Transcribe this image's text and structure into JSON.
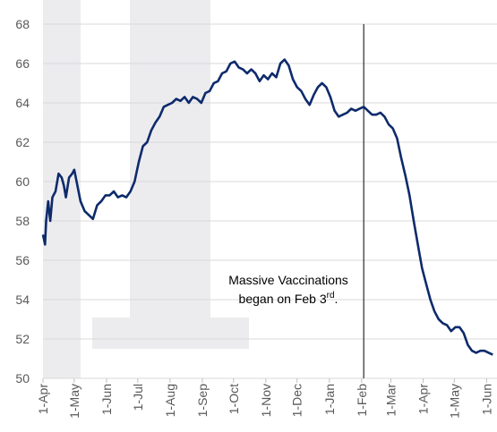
{
  "chart_data": {
    "type": "line",
    "x": [
      0,
      2,
      3,
      5,
      7,
      9,
      12,
      15,
      18,
      20,
      22,
      25,
      28,
      30,
      33,
      36,
      40,
      44,
      48,
      52,
      56,
      60,
      64,
      68,
      72,
      76,
      80,
      84,
      88,
      92,
      96,
      100,
      104,
      108,
      112,
      116,
      120,
      124,
      128,
      132,
      136,
      140,
      144,
      148,
      152,
      156,
      160,
      164,
      168,
      172,
      176,
      180,
      184,
      188,
      192,
      196,
      200,
      204,
      208,
      212,
      216,
      220,
      224,
      228,
      232,
      236,
      240,
      244,
      248,
      252,
      256,
      260,
      264,
      268,
      272,
      276,
      280,
      284,
      288,
      292,
      296,
      300,
      304,
      308,
      312,
      316,
      320,
      324,
      328,
      332,
      336,
      340,
      344,
      348,
      352,
      356,
      360,
      364,
      368,
      372,
      376,
      380,
      384,
      388,
      392,
      396,
      400,
      404,
      408,
      412,
      416,
      420,
      424,
      428,
      432
    ],
    "series": [
      {
        "color": "#0d2a6b",
        "values": [
          57.3,
          56.8,
          58.0,
          59.0,
          58.0,
          59.2,
          59.5,
          60.4,
          60.2,
          59.8,
          59.2,
          60.2,
          60.4,
          60.6,
          59.8,
          59.0,
          58.5,
          58.3,
          58.1,
          58.8,
          59.0,
          59.3,
          59.3,
          59.5,
          59.2,
          59.3,
          59.2,
          59.5,
          60.0,
          61.0,
          61.8,
          62.0,
          62.6,
          63.0,
          63.3,
          63.8,
          63.9,
          64.0,
          64.2,
          64.1,
          64.3,
          64.0,
          64.3,
          64.2,
          64.0,
          64.5,
          64.6,
          65.0,
          65.1,
          65.5,
          65.6,
          66.0,
          66.1,
          65.8,
          65.7,
          65.5,
          65.7,
          65.5,
          65.1,
          65.4,
          65.2,
          65.5,
          65.3,
          66.0,
          66.2,
          65.9,
          65.2,
          64.8,
          64.6,
          64.2,
          63.9,
          64.4,
          64.8,
          65.0,
          64.8,
          64.3,
          63.6,
          63.3,
          63.4,
          63.5,
          63.7,
          63.6,
          63.7,
          63.8,
          63.6,
          63.4,
          63.4,
          63.5,
          63.3,
          62.9,
          62.7,
          62.2,
          61.2,
          60.3,
          59.3,
          58.0,
          56.8,
          55.6,
          54.8,
          54.0,
          53.4,
          53.0,
          52.8,
          52.7,
          52.4,
          52.6,
          52.6,
          52.3,
          51.7,
          51.4,
          51.3,
          51.4,
          51.4,
          51.3,
          51.2
        ]
      }
    ],
    "xlim": [
      0,
      436
    ],
    "xticks": [
      {
        "value": 0,
        "label": "1-Apr"
      },
      {
        "value": 30,
        "label": "1-May"
      },
      {
        "value": 61,
        "label": "1-Jun"
      },
      {
        "value": 91,
        "label": "1-Jul"
      },
      {
        "value": 122,
        "label": "1-Aug"
      },
      {
        "value": 153,
        "label": "1-Sep"
      },
      {
        "value": 183,
        "label": "1-Oct"
      },
      {
        "value": 214,
        "label": "1-Nov"
      },
      {
        "value": 244,
        "label": "1-Dec"
      },
      {
        "value": 275,
        "label": "1-Jan"
      },
      {
        "value": 306,
        "label": "1-Feb"
      },
      {
        "value": 334,
        "label": "1-Mar"
      },
      {
        "value": 365,
        "label": "1-Apr"
      },
      {
        "value": 395,
        "label": "1-May"
      },
      {
        "value": 426,
        "label": "1-Jun"
      }
    ],
    "ylim": [
      50,
      68
    ],
    "yticks": [
      50,
      52,
      54,
      56,
      58,
      60,
      62,
      64,
      66,
      68
    ],
    "grid": true,
    "event_x": 308,
    "annotation": [
      "Massive Vaccinations",
      "began on Feb 3",
      "rd",
      "."
    ]
  }
}
